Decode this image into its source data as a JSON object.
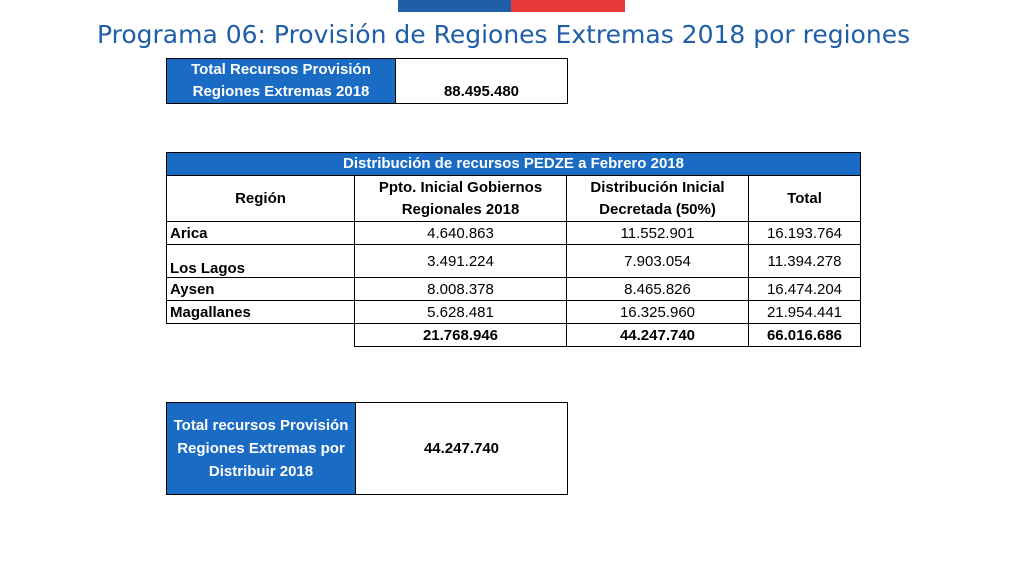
{
  "title": "Programa 06: Provisión de Regiones Extremas 2018 por regiones",
  "total_box": {
    "label": "Total Recursos Provisión Regiones Extremas 2018",
    "value": "88.495.480"
  },
  "distribution": {
    "header": "Distribución de recursos PEDZE a Febrero 2018",
    "columns": [
      "Región",
      "Ppto. Inicial Gobiernos Regionales 2018",
      "Distribución Inicial Decretada (50%)",
      "Total"
    ],
    "rows": [
      {
        "region": "Arica",
        "ppto": "4.640.863",
        "dist": "11.552.901",
        "total": "16.193.764"
      },
      {
        "region": "Los Lagos",
        "ppto": "3.491.224",
        "dist": "7.903.054",
        "total": "11.394.278"
      },
      {
        "region": "Aysen",
        "ppto": "8.008.378",
        "dist": "8.465.826",
        "total": "16.474.204"
      },
      {
        "region": "Magallanes",
        "ppto": "5.628.481",
        "dist": "16.325.960",
        "total": "21.954.441"
      }
    ],
    "totals": {
      "ppto": "21.768.946",
      "dist": "44.247.740",
      "total": "66.016.686"
    }
  },
  "remaining_box": {
    "label": "Total recursos Provisión Regiones Extremas por Distribuir 2018",
    "value": "44.247.740"
  },
  "colors": {
    "header_blue": "#1a6bc4",
    "title_blue": "#1f5ea8",
    "flag_red": "#e8393a"
  }
}
